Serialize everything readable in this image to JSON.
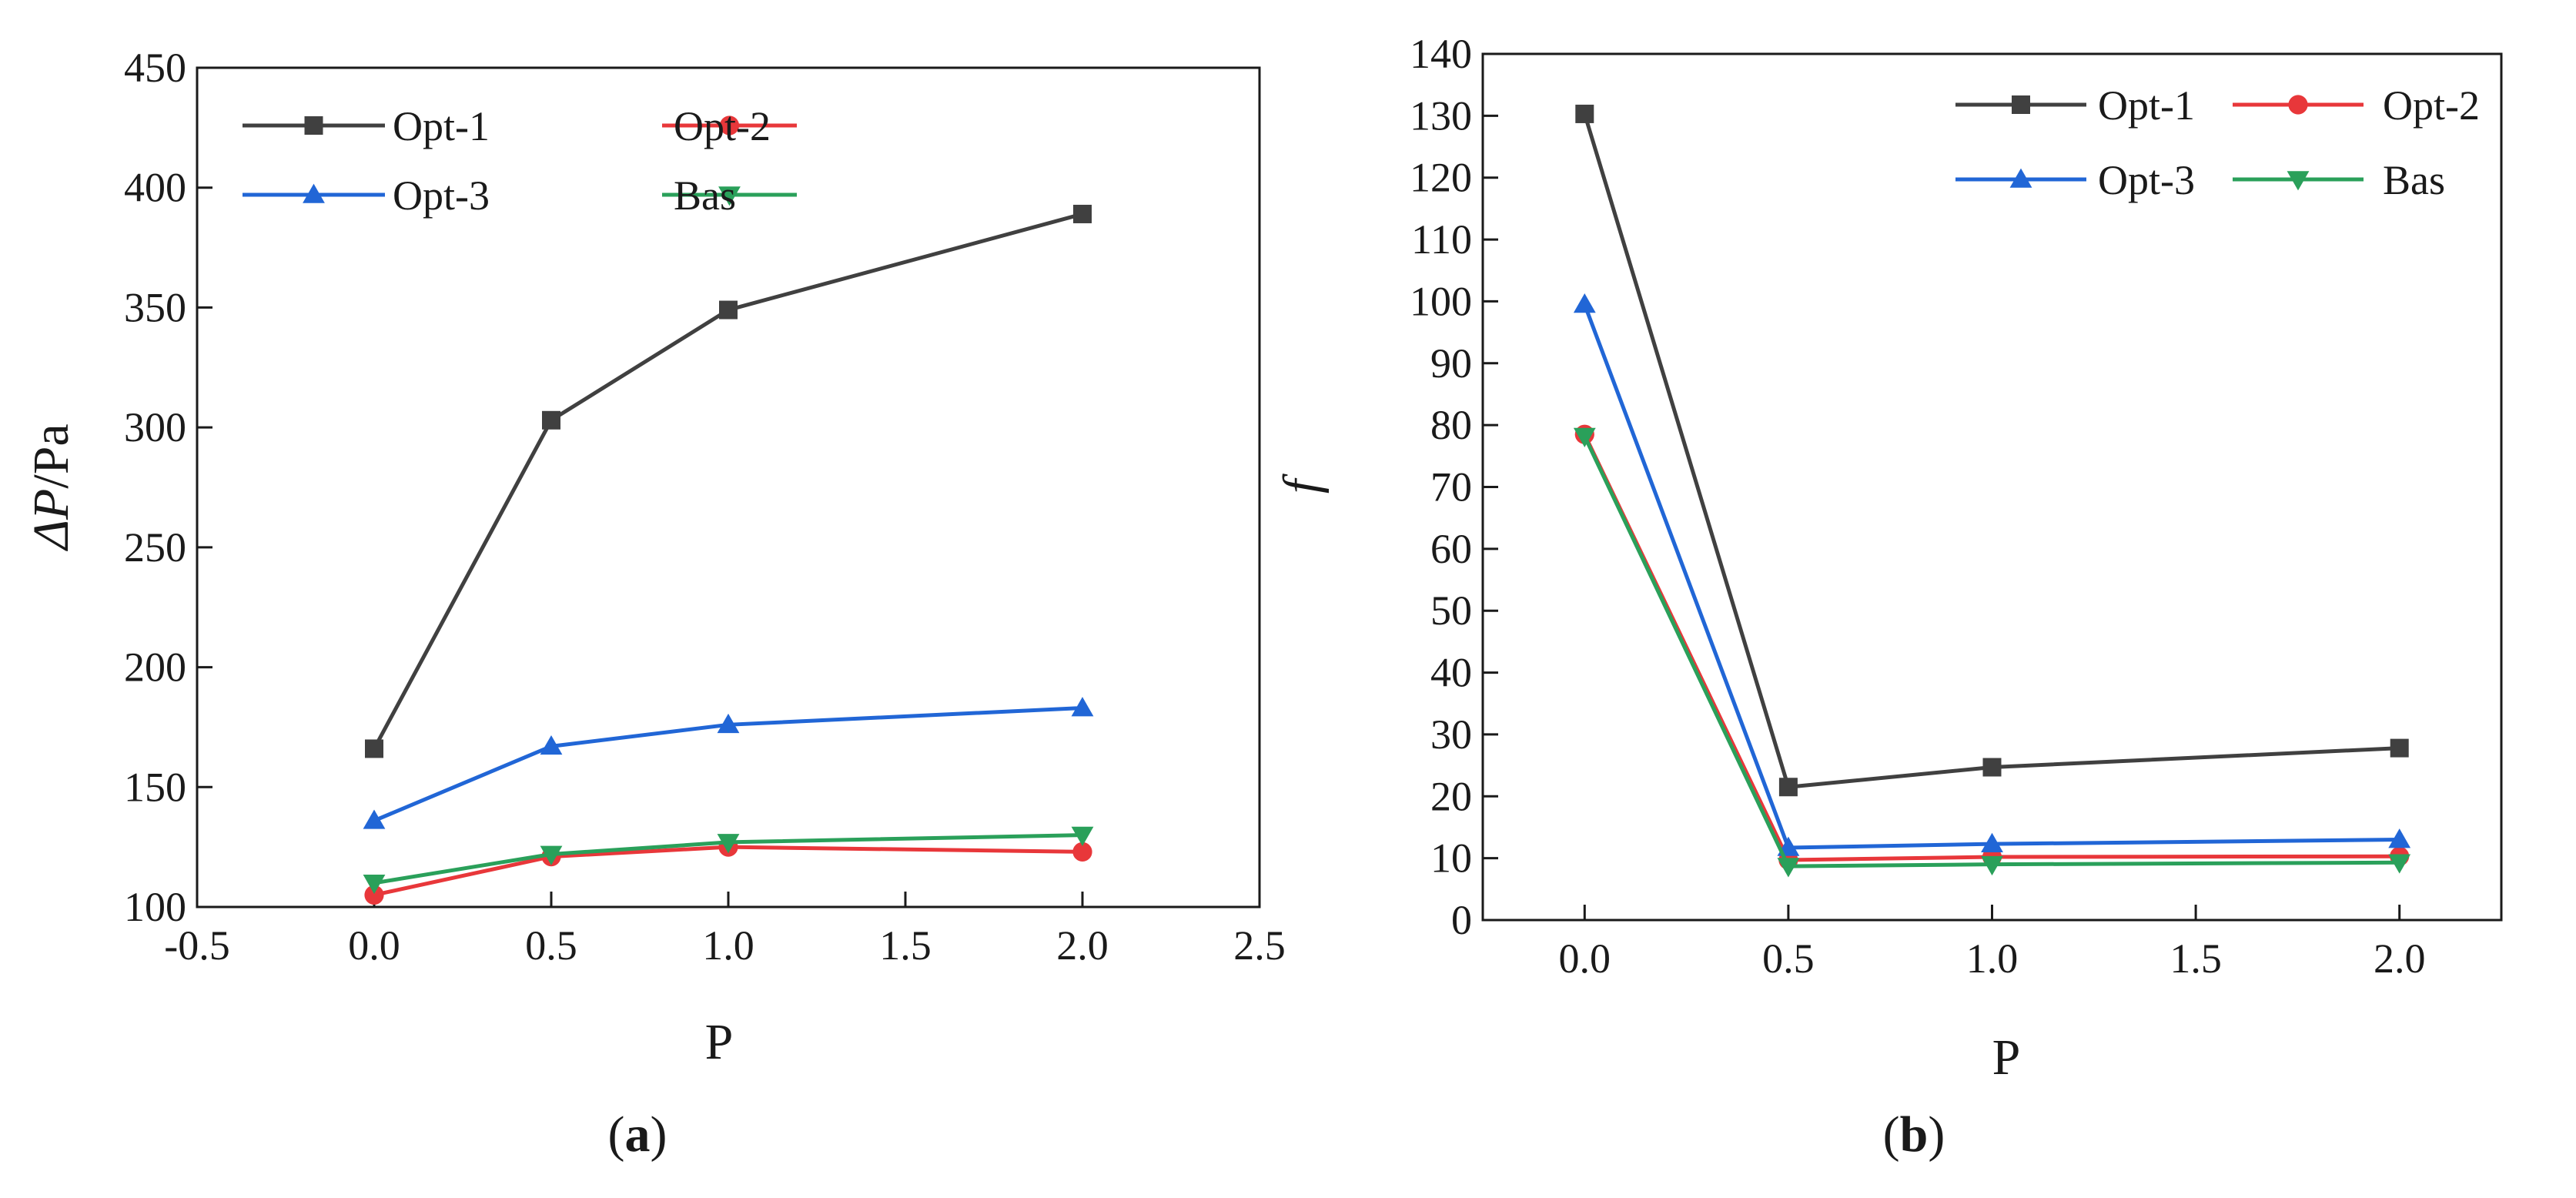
{
  "chart_data": [
    {
      "type": "line",
      "panel_label": "a",
      "title": "",
      "xlabel": "P",
      "ylabel": {
        "symbol": "ΔP",
        "unit": "/Pa"
      },
      "xlim": [
        -0.5,
        2.5
      ],
      "ylim": [
        100,
        450
      ],
      "xticks": [
        -0.5,
        0.0,
        0.5,
        1.0,
        1.5,
        2.0,
        2.5
      ],
      "xtick_labels": [
        "-0.5",
        "0.0",
        "0.5",
        "1.0",
        "1.5",
        "2.0",
        "2.5"
      ],
      "yticks": [
        100,
        150,
        200,
        250,
        300,
        350,
        400,
        450
      ],
      "ytick_labels": [
        "100",
        "150",
        "200",
        "250",
        "300",
        "350",
        "400",
        "450"
      ],
      "grid": false,
      "legend_position": "top-left",
      "x": [
        0.0,
        0.5,
        1.0,
        2.0
      ],
      "series": [
        {
          "name": "Opt-1",
          "color": "#404040",
          "marker": "square",
          "values": [
            166,
            303,
            349,
            389
          ]
        },
        {
          "name": "Opt-2",
          "color": "#e8373a",
          "marker": "circle",
          "values": [
            105,
            121,
            125,
            123
          ]
        },
        {
          "name": "Opt-3",
          "color": "#2166d6",
          "marker": "triangle-up",
          "values": [
            136,
            167,
            176,
            183
          ]
        },
        {
          "name": "Bas",
          "color": "#2aa05a",
          "marker": "triangle-down",
          "values": [
            110,
            122,
            127,
            130
          ]
        }
      ]
    },
    {
      "type": "line",
      "panel_label": "b",
      "title": "",
      "xlabel": "P",
      "ylabel": {
        "symbol": "f",
        "unit": ""
      },
      "xlim": [
        -0.25,
        2.25
      ],
      "ylim": [
        0,
        140
      ],
      "xticks": [
        0.0,
        0.5,
        1.0,
        1.5,
        2.0
      ],
      "xtick_labels": [
        "0.0",
        "0.5",
        "1.0",
        "1.5",
        "2.0"
      ],
      "yticks": [
        0,
        10,
        20,
        30,
        40,
        50,
        60,
        70,
        80,
        90,
        100,
        110,
        120,
        130,
        140
      ],
      "ytick_labels": [
        "0",
        "10",
        "20",
        "30",
        "40",
        "50",
        "60",
        "70",
        "80",
        "90",
        "100",
        "110",
        "120",
        "130",
        "140"
      ],
      "grid": false,
      "legend_position": "top-right",
      "x": [
        0.0,
        0.5,
        1.0,
        2.0
      ],
      "series": [
        {
          "name": "Opt-1",
          "color": "#404040",
          "marker": "square",
          "values": [
            130.3,
            21.5,
            24.7,
            27.8
          ]
        },
        {
          "name": "Opt-2",
          "color": "#e8373a",
          "marker": "circle",
          "values": [
            78.5,
            9.7,
            10.2,
            10.3
          ]
        },
        {
          "name": "Opt-3",
          "color": "#2166d6",
          "marker": "triangle-up",
          "values": [
            99.5,
            11.7,
            12.3,
            13.0
          ]
        },
        {
          "name": "Bas",
          "color": "#2aa05a",
          "marker": "triangle-down",
          "values": [
            78.2,
            8.7,
            9.0,
            9.3
          ]
        }
      ]
    }
  ]
}
